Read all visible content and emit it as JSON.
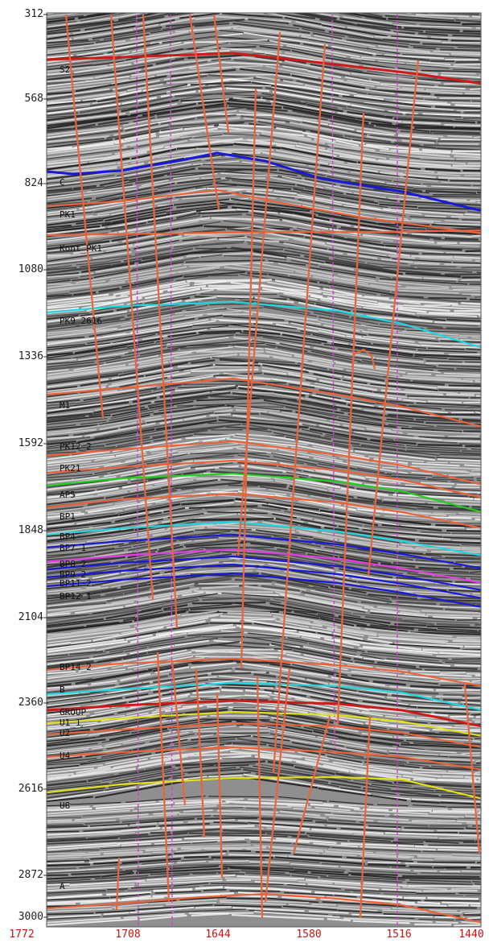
{
  "y_axis": {
    "ticks": [
      "312",
      "568",
      "824",
      "1080",
      "1336",
      "1592",
      "1848",
      "2104",
      "2360",
      "2616",
      "2872",
      "3000"
    ]
  },
  "x_axis": {
    "ticks": [
      "1772",
      "1708",
      "1644",
      "1580",
      "1516",
      "1440"
    ]
  },
  "horizons": [
    {
      "label": "S2",
      "color": "#cc1a1a"
    },
    {
      "label": "C",
      "color": "#1a1ad6"
    },
    {
      "label": "PK1",
      "color": "#e8643c"
    },
    {
      "label": "Kont_PK1",
      "color": "#e8643c"
    },
    {
      "label": "PK9_2616",
      "color": "#22d6e0"
    },
    {
      "label": "M1",
      "color": "#e8643c"
    },
    {
      "label": "PK12_2",
      "color": "#e8643c"
    },
    {
      "label": "PK21",
      "color": "#e8643c"
    },
    {
      "label": "AP5",
      "color": "#22cc22"
    },
    {
      "label": "BP1",
      "color": "#e8643c"
    },
    {
      "label": "BP4",
      "color": "#22d6e0"
    },
    {
      "label": "BP7_1",
      "color": "#1a1ad6"
    },
    {
      "label": "BP8_2",
      "color": "#e040e0"
    },
    {
      "label": "BP9_2",
      "color": "#1a1ad6"
    },
    {
      "label": "BP11_2",
      "color": "#1a1ad6"
    },
    {
      "label": "BP12_1",
      "color": "#1a1ad6"
    },
    {
      "label": "BP14_2",
      "color": "#e8643c"
    },
    {
      "label": "B",
      "color": "#22d6e0"
    },
    {
      "label": "GROUP",
      "color": "#cc1a1a"
    },
    {
      "label": "U1_1",
      "color": "#e0e020"
    },
    {
      "label": "U2",
      "color": "#e8643c"
    },
    {
      "label": "U4",
      "color": "#e8643c"
    },
    {
      "label": "U8",
      "color": "#e0e020"
    },
    {
      "label": "A",
      "color": "#e8643c"
    }
  ],
  "colors": {
    "fault": "#e8643c",
    "well_line": "#cc44cc",
    "x_label": "#cc1111"
  }
}
